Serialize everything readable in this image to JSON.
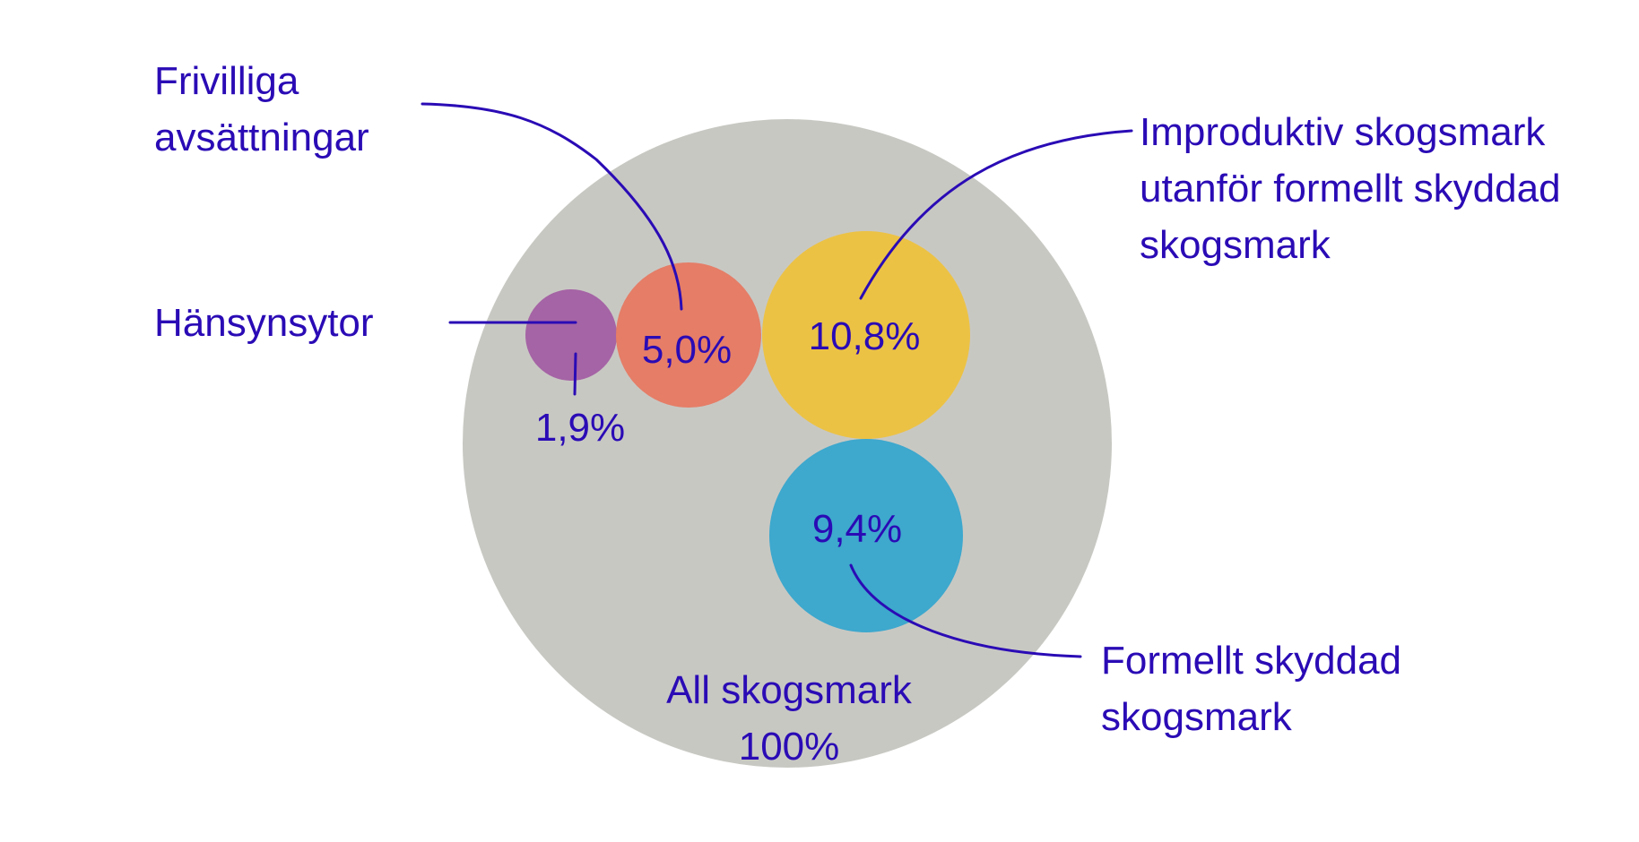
{
  "colors": {
    "text": "#2a0bb5",
    "line": "#2a0bb5",
    "background_circle": "#c8c8c3"
  },
  "chart_data": {
    "type": "bubble",
    "title": "",
    "total": {
      "label": "All skogsmark",
      "value": 100,
      "value_label": "100%",
      "color": "#c8c8c3"
    },
    "series": [
      {
        "name": "Hänsynsytor",
        "value": 1.9,
        "value_label": "1,9%",
        "color": "#a564a5"
      },
      {
        "name": "Frivilliga avsättningar",
        "value": 5.0,
        "value_label": "5,0%",
        "color": "#e57d67"
      },
      {
        "name": "Improduktiv skogsmark utanför formellt skyddad skogsmark",
        "value": 10.8,
        "value_label": "10,8%",
        "color": "#ecc245"
      },
      {
        "name": "Formellt skyddad skogsmark",
        "value": 9.4,
        "value_label": "9,4%",
        "color": "#3ea8cd"
      }
    ]
  },
  "labels": {
    "hansyn": "Hänsynsytor",
    "frivilliga_l1": "Frivilliga",
    "frivilliga_l2": "avsättningar",
    "improduktiv_l1": "Improduktiv skogsmark",
    "improduktiv_l2": "utanför formellt skyddad",
    "improduktiv_l3": "skogsmark",
    "formellt_l1": "Formellt skyddad",
    "formellt_l2": "skogsmark",
    "total_l1": "All skogsmark",
    "total_l2": "100%"
  }
}
